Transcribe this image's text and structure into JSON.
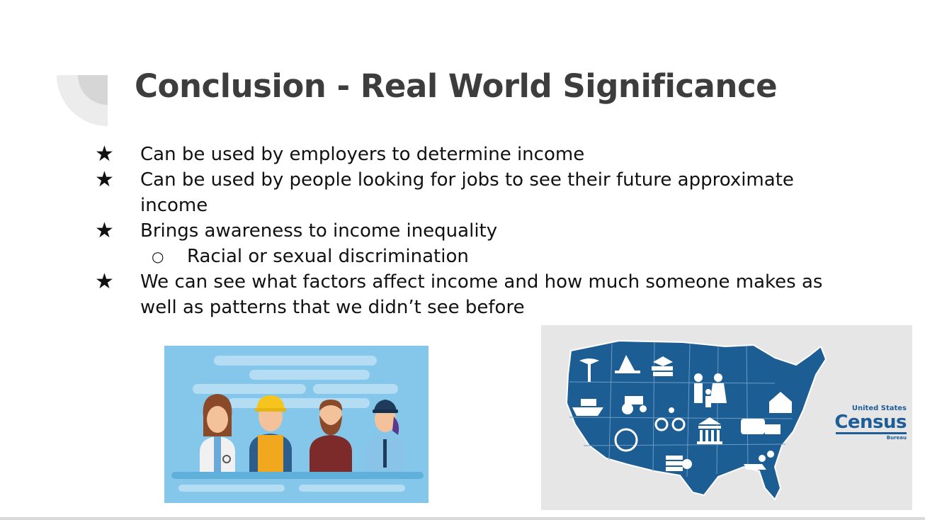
{
  "slide": {
    "title": "Conclusion - Real World Significance",
    "bullets": [
      {
        "marker": "★",
        "text": "Can be used by employers to determine income",
        "level": 1
      },
      {
        "marker": "★",
        "text": "Can be used by people looking for jobs to see their future approximate income",
        "level": 1
      },
      {
        "marker": "★",
        "text": "Brings awareness to income inequality",
        "level": 1
      },
      {
        "marker": "○",
        "text": "Racial or sexual discrimination",
        "level": 2
      },
      {
        "marker": "★",
        "text": "We can see what factors affect income and how much someone makes as well as patterns that we didn’t see before",
        "level": 1
      }
    ]
  },
  "images": {
    "workers": {
      "icon": "workers-illustration"
    },
    "census": {
      "icon": "census-map",
      "logo_line1": "United States",
      "logo_line2": "Census",
      "logo_line3": "Bureau"
    }
  },
  "colors": {
    "title": "#3d3d3d",
    "text": "#111111",
    "map_blue": "#1c5d93",
    "sky_blue": "#85c7eb",
    "census_logo": "#1f5d96"
  }
}
